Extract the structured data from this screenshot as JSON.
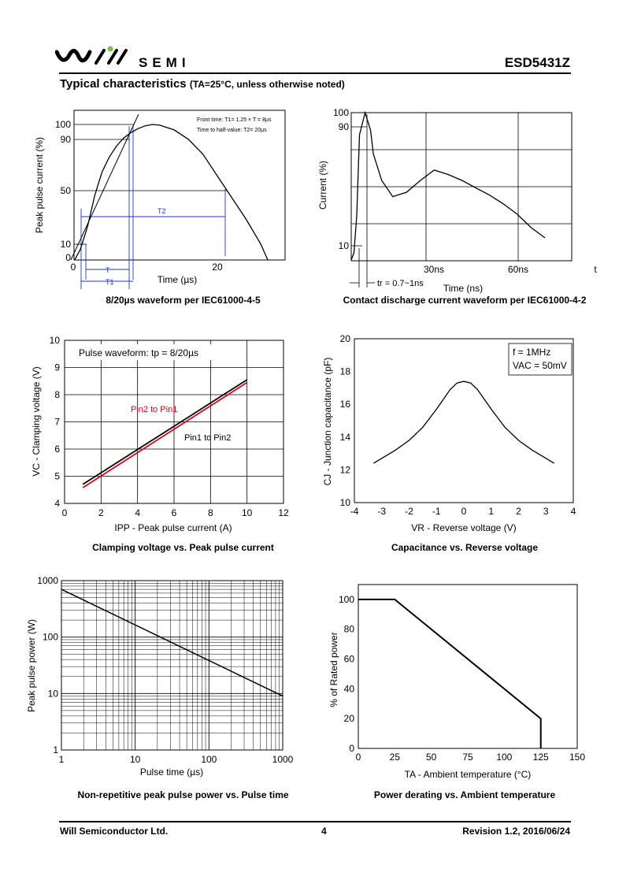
{
  "header": {
    "brand_word": "SEMI",
    "part_number": "ESD5431Z",
    "section_title": "Typical characteristics",
    "section_condition": "(TA=25°C, unless otherwise noted)"
  },
  "footer": {
    "company": "Will Semiconductor Ltd.",
    "page": "4",
    "revision": "Revision 1.2, 2016/06/24"
  },
  "captions": {
    "c1": "8/20µs waveform per IEC61000-4-5",
    "c2": "Contact discharge current waveform per IEC61000-4-2",
    "c3": "Clamping voltage vs. Peak pulse current",
    "c4": "Capacitance vs. Reverse voltage",
    "c5": "Non-repetitive peak pulse power vs. Pulse time",
    "c6": "Power derating vs. Ambient temperature"
  },
  "chart_data": [
    {
      "id": "waveform-8-20",
      "type": "line",
      "xlabel": "Time (µs)",
      "ylabel": "Peak pulse current (%)",
      "xlim": [
        -2,
        30
      ],
      "ylim": [
        0,
        110
      ],
      "x_ticks": [
        "0",
        "20"
      ],
      "y_ticks": [
        "0",
        "10",
        "50",
        "90",
        "100"
      ],
      "annotations": [
        "Front time: T1= 1.25 × T = 8µs",
        "Time to half-value: T2= 20µs",
        "T",
        "T1",
        "T2"
      ],
      "series": [
        {
          "x": [
            0.2,
            1,
            2,
            3,
            4,
            5,
            6,
            7,
            8,
            9,
            10,
            11,
            12,
            14,
            16,
            18,
            20,
            22,
            24,
            26,
            27
          ],
          "values": [
            0,
            8,
            25,
            48,
            65,
            76,
            84,
            90,
            94,
            97,
            99,
            100,
            99.5,
            96,
            89,
            78,
            62,
            46,
            30,
            12,
            0
          ]
        }
      ]
    },
    {
      "id": "contact-discharge",
      "type": "line",
      "xlabel": "Time (ns)",
      "ylabel": "Current (%)",
      "x_ticks": [
        "30ns",
        "60ns",
        "t"
      ],
      "y_ticks": [
        "10",
        "90",
        "100"
      ],
      "annotations": [
        "tr = 0.7~1ns"
      ],
      "series": [
        {
          "x": [
            0,
            1,
            2,
            3,
            5,
            7,
            8,
            11,
            15,
            20,
            25,
            30,
            35,
            40,
            45,
            50,
            55,
            60,
            65,
            70
          ],
          "values": [
            0,
            5,
            30,
            85,
            100,
            88,
            72,
            54,
            43,
            46,
            54,
            61,
            58,
            54,
            49,
            44,
            38,
            31,
            22,
            15
          ]
        }
      ]
    },
    {
      "id": "clamping-voltage",
      "type": "line",
      "xlabel": "IPP - Peak pulse current (A)",
      "ylabel": "VC - Clamping voltage (V)",
      "xlim": [
        0,
        12
      ],
      "ylim": [
        4,
        10
      ],
      "x_ticks": [
        "0",
        "2",
        "4",
        "6",
        "8",
        "10",
        "12"
      ],
      "y_ticks": [
        "4",
        "5",
        "6",
        "7",
        "8",
        "9",
        "10"
      ],
      "annotations": [
        "Pulse waveform: tp = 8/20µs"
      ],
      "series": [
        {
          "name": "Pin2 to Pin1",
          "color": "#e1001a",
          "x": [
            1,
            10
          ],
          "values": [
            4.58,
            8.45
          ]
        },
        {
          "name": "Pin1 to Pin2",
          "color": "#000000",
          "x": [
            1,
            10
          ],
          "values": [
            4.7,
            8.55
          ]
        }
      ]
    },
    {
      "id": "capacitance",
      "type": "line",
      "xlabel": "VR - Reverse voltage (V)",
      "ylabel": "CJ - Junction capacitance (pF)",
      "xlim": [
        -4,
        4
      ],
      "ylim": [
        10,
        20
      ],
      "x_ticks": [
        "-4",
        "-3",
        "-2",
        "-1",
        "0",
        "1",
        "2",
        "3",
        "4"
      ],
      "y_ticks": [
        "10",
        "12",
        "14",
        "16",
        "18",
        "20"
      ],
      "annotations": [
        "f = 1MHz",
        "VAC = 50mV"
      ],
      "series": [
        {
          "x": [
            -3.3,
            -3,
            -2.5,
            -2,
            -1.5,
            -1,
            -0.5,
            -0.25,
            0,
            0.25,
            0.5,
            1,
            1.5,
            2,
            2.5,
            3,
            3.3
          ],
          "values": [
            12.4,
            12.7,
            13.2,
            13.8,
            14.6,
            15.7,
            16.9,
            17.3,
            17.4,
            17.3,
            16.9,
            15.7,
            14.6,
            13.8,
            13.2,
            12.7,
            12.4
          ]
        }
      ]
    },
    {
      "id": "pulse-power",
      "type": "line",
      "scale": "log-log",
      "xlabel": "Pulse time (µs)",
      "ylabel": "Peak pulse power (W)",
      "xlim": [
        1,
        1000
      ],
      "ylim": [
        1,
        1000
      ],
      "x_ticks": [
        "1",
        "10",
        "100",
        "1000"
      ],
      "y_ticks": [
        "1",
        "10",
        "100",
        "1000"
      ],
      "series": [
        {
          "x": [
            1,
            1000
          ],
          "values": [
            700,
            9
          ]
        }
      ]
    },
    {
      "id": "power-derating",
      "type": "line",
      "xlabel": "TA - Ambient temperature (°C)",
      "ylabel": "% of Rated power",
      "xlim": [
        0,
        150
      ],
      "ylim": [
        0,
        110
      ],
      "x_ticks": [
        "0",
        "25",
        "50",
        "75",
        "100",
        "125",
        "150"
      ],
      "y_ticks": [
        "0",
        "20",
        "40",
        "60",
        "80",
        "100"
      ],
      "series": [
        {
          "x": [
            0,
            25,
            125,
            125
          ],
          "values": [
            100,
            100,
            20,
            0
          ]
        }
      ]
    }
  ]
}
